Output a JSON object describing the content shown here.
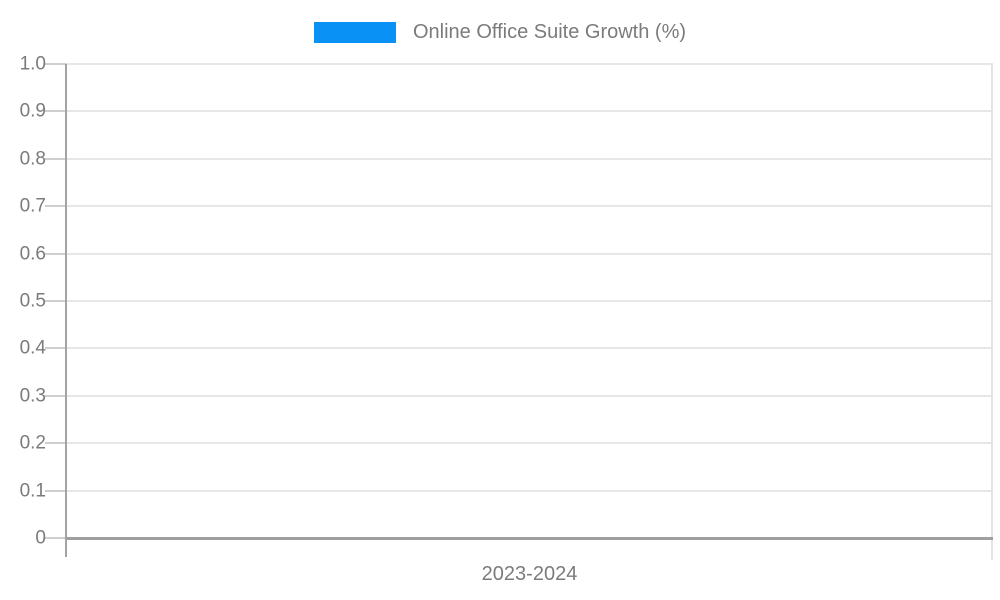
{
  "legend": {
    "label": "Online Office Suite Growth (%)"
  },
  "x_axis": {
    "label": "2023-2024"
  },
  "colors": {
    "series": "#0a91f5",
    "grid": "#e7e7e7",
    "tick": "#cfcfcf",
    "axis": "#a3a3a3",
    "baseline": "#9f9f9f",
    "right_border": "#e3e3e3",
    "text": "#7b7b7b",
    "background": "#ffffff"
  },
  "chart_data": {
    "type": "bar",
    "title": "Online Office Suite Growth (%)",
    "categories": [
      "2023-2024"
    ],
    "series": [
      {
        "name": "Online Office Suite Growth (%)",
        "values": []
      }
    ],
    "xlabel": "2023-2024",
    "ylabel": "",
    "ylim": [
      0,
      1.0
    ],
    "yticks": [
      0,
      0.1,
      0.2,
      0.3,
      0.4,
      0.5,
      0.6,
      0.7,
      0.8,
      0.9,
      1.0
    ],
    "ytick_labels": [
      "0",
      "0.1",
      "0.2",
      "0.3",
      "0.4",
      "0.5",
      "0.6",
      "0.7",
      "0.8",
      "0.9",
      "1.0"
    ],
    "grid": true,
    "legend_position": "top",
    "notes": "plot area is empty; no data points rendered"
  }
}
